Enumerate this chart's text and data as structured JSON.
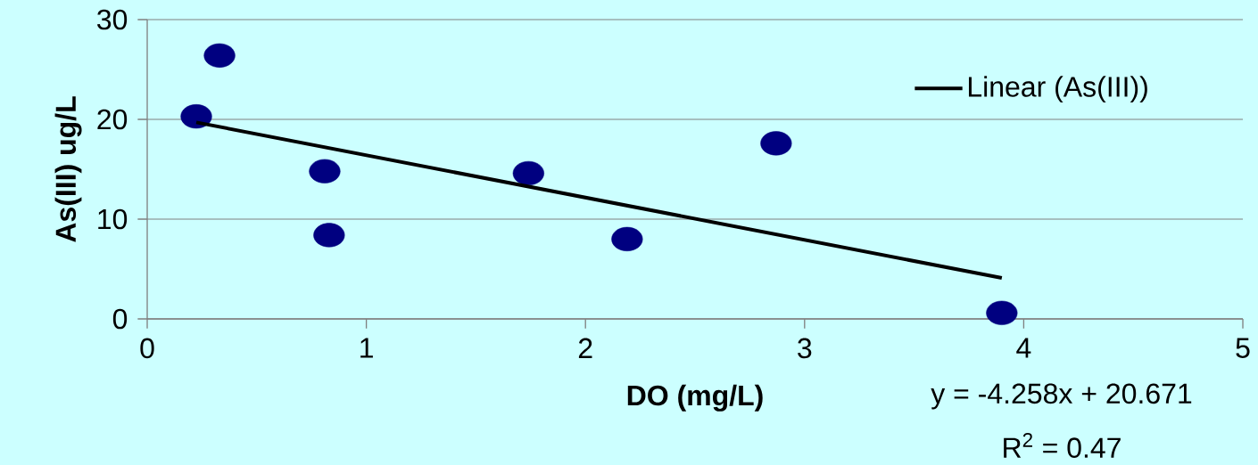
{
  "chart_data": {
    "type": "scatter",
    "xlabel": "DO (mg/L)",
    "ylabel": "As(III) ug/L",
    "xlim": [
      0,
      5
    ],
    "xticks": [
      0,
      1,
      2,
      3,
      4,
      5
    ],
    "ylim": [
      0,
      30
    ],
    "yticks": [
      0,
      10,
      20,
      30
    ],
    "grid": "y",
    "legend": "top right",
    "series": [
      {
        "marker": "circle",
        "color": "#000080",
        "x": [
          0.224,
          0.33,
          0.81,
          0.83,
          1.74,
          2.19,
          2.87,
          3.9
        ],
        "values": [
          20.3,
          26.4,
          14.8,
          8.4,
          14.6,
          8.0,
          17.6,
          0.6
        ]
      },
      {
        "type": "line",
        "marker": "none",
        "name": "Linear (As(III))",
        "color": "#000000",
        "x": [
          0.224,
          3.9
        ],
        "values": [
          19.7,
          4.1
        ]
      }
    ],
    "annotations": [
      "y = -4.258x + 20.671",
      "R$^{2}$ = 0.47"
    ]
  }
}
